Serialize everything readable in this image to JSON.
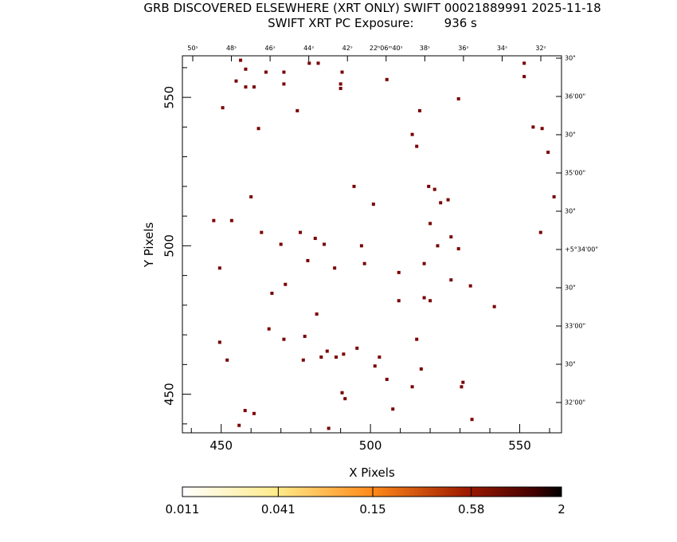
{
  "chart_data": {
    "type": "scatter",
    "title": "GRB DISCOVERED ELSEWHERE (XRT ONLY) SWIFT 00021889991 2025-11-18",
    "subtitle": "SWIFT XRT PC Exposure:        936 s",
    "xlabel": "X Pixels",
    "ylabel": "Y Pixels",
    "xlim": [
      437,
      564
    ],
    "ylim": [
      437,
      564
    ],
    "x_ticks": [
      450,
      500,
      550
    ],
    "y_ticks": [
      450,
      500,
      550
    ],
    "ra_ticks": [
      "50ˢ",
      "48ˢ",
      "46ˢ",
      "44ˢ",
      "42ˢ",
      "22ʰ06ᵐ40ˢ",
      "38ˢ",
      "36ˢ",
      "34ˢ",
      "32ˢ"
    ],
    "dec_ticks": [
      "30\"",
      "36'00\"",
      "30\"",
      "35'00\"",
      "30\"",
      "+5°34'00\"",
      "30\"",
      "33'00\"",
      "30\"",
      "32'00\""
    ],
    "point_color": "#7a0000",
    "points": [
      {
        "x": 456.5,
        "y": 562.5
      },
      {
        "x": 458.2,
        "y": 559.5
      },
      {
        "x": 455.0,
        "y": 555.5
      },
      {
        "x": 458.2,
        "y": 553.5
      },
      {
        "x": 461.0,
        "y": 553.5
      },
      {
        "x": 465.0,
        "y": 558.5
      },
      {
        "x": 471.0,
        "y": 558.5
      },
      {
        "x": 471.0,
        "y": 554.5
      },
      {
        "x": 450.5,
        "y": 546.5
      },
      {
        "x": 462.5,
        "y": 539.5
      },
      {
        "x": 475.5,
        "y": 545.5
      },
      {
        "x": 479.5,
        "y": 561.5
      },
      {
        "x": 482.5,
        "y": 561.5
      },
      {
        "x": 490.5,
        "y": 558.5
      },
      {
        "x": 490.0,
        "y": 554.5
      },
      {
        "x": 490.0,
        "y": 553.0
      },
      {
        "x": 505.5,
        "y": 556.0
      },
      {
        "x": 516.5,
        "y": 545.5
      },
      {
        "x": 515.5,
        "y": 533.5
      },
      {
        "x": 514.0,
        "y": 537.5
      },
      {
        "x": 529.5,
        "y": 549.5
      },
      {
        "x": 551.5,
        "y": 561.5
      },
      {
        "x": 551.5,
        "y": 557.0
      },
      {
        "x": 554.5,
        "y": 540.0
      },
      {
        "x": 557.5,
        "y": 539.5
      },
      {
        "x": 559.5,
        "y": 531.5
      },
      {
        "x": 561.5,
        "y": 516.5
      },
      {
        "x": 557.0,
        "y": 504.5
      },
      {
        "x": 447.5,
        "y": 508.5
      },
      {
        "x": 453.5,
        "y": 508.5
      },
      {
        "x": 460.0,
        "y": 516.5
      },
      {
        "x": 463.5,
        "y": 504.5
      },
      {
        "x": 449.5,
        "y": 492.5
      },
      {
        "x": 476.5,
        "y": 504.5
      },
      {
        "x": 481.5,
        "y": 502.5
      },
      {
        "x": 484.5,
        "y": 500.5
      },
      {
        "x": 470.0,
        "y": 500.5
      },
      {
        "x": 479.0,
        "y": 495.0
      },
      {
        "x": 471.5,
        "y": 487.0
      },
      {
        "x": 467.0,
        "y": 484.0
      },
      {
        "x": 488.0,
        "y": 492.5
      },
      {
        "x": 494.5,
        "y": 520.0
      },
      {
        "x": 501.0,
        "y": 514.0
      },
      {
        "x": 497.0,
        "y": 500.0
      },
      {
        "x": 498.0,
        "y": 494.0
      },
      {
        "x": 509.5,
        "y": 491.0
      },
      {
        "x": 518.0,
        "y": 494.0
      },
      {
        "x": 519.5,
        "y": 520.0
      },
      {
        "x": 521.5,
        "y": 519.0
      },
      {
        "x": 523.5,
        "y": 514.5
      },
      {
        "x": 526.0,
        "y": 515.5
      },
      {
        "x": 520.0,
        "y": 507.5
      },
      {
        "x": 527.0,
        "y": 503.0
      },
      {
        "x": 522.5,
        "y": 500.0
      },
      {
        "x": 529.5,
        "y": 499.0
      },
      {
        "x": 527.0,
        "y": 488.5
      },
      {
        "x": 533.5,
        "y": 486.5
      },
      {
        "x": 509.5,
        "y": 481.5
      },
      {
        "x": 518.0,
        "y": 482.5
      },
      {
        "x": 520.0,
        "y": 481.5
      },
      {
        "x": 541.5,
        "y": 479.5
      },
      {
        "x": 482.0,
        "y": 477.0
      },
      {
        "x": 466.0,
        "y": 472.0
      },
      {
        "x": 471.0,
        "y": 468.5
      },
      {
        "x": 478.0,
        "y": 469.5
      },
      {
        "x": 449.5,
        "y": 467.5
      },
      {
        "x": 452.0,
        "y": 461.5
      },
      {
        "x": 477.5,
        "y": 461.5
      },
      {
        "x": 485.5,
        "y": 464.5
      },
      {
        "x": 483.5,
        "y": 462.5
      },
      {
        "x": 488.5,
        "y": 462.5
      },
      {
        "x": 491.0,
        "y": 463.5
      },
      {
        "x": 495.5,
        "y": 465.5
      },
      {
        "x": 503.0,
        "y": 462.5
      },
      {
        "x": 501.5,
        "y": 459.5
      },
      {
        "x": 515.5,
        "y": 468.5
      },
      {
        "x": 517.0,
        "y": 458.5
      },
      {
        "x": 505.5,
        "y": 455.0
      },
      {
        "x": 514.0,
        "y": 452.5
      },
      {
        "x": 531.0,
        "y": 454.0
      },
      {
        "x": 530.5,
        "y": 452.5
      },
      {
        "x": 490.5,
        "y": 450.5
      },
      {
        "x": 491.5,
        "y": 448.5
      },
      {
        "x": 507.5,
        "y": 445.0
      },
      {
        "x": 458.0,
        "y": 444.5
      },
      {
        "x": 461.0,
        "y": 443.5
      },
      {
        "x": 456.0,
        "y": 439.5
      },
      {
        "x": 486.0,
        "y": 438.5
      },
      {
        "x": 534.0,
        "y": 441.5
      }
    ],
    "colorbar": {
      "scale": "log",
      "tick_labels": [
        "0.011",
        "0.041",
        "0.15",
        "0.58",
        "2"
      ],
      "min": 0.011,
      "max": 2
    }
  }
}
